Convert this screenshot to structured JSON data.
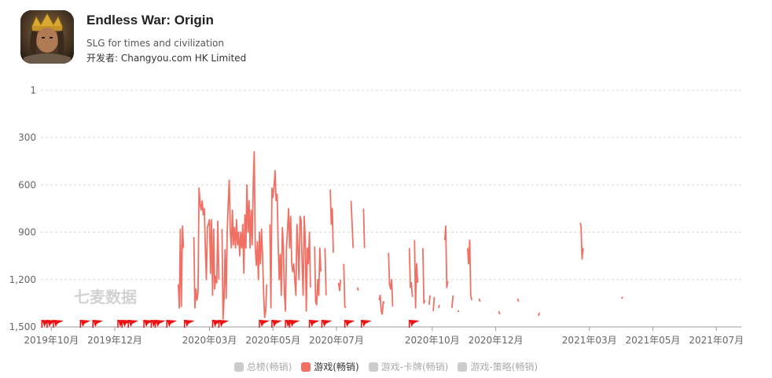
{
  "app": {
    "title": "Endless War: Origin",
    "subtitle": "SLG for times and civilization",
    "developer_label": "开发者: Changyou.com HK Limited",
    "icon": "app-icon-king-portrait"
  },
  "watermark": "七麦数据",
  "colors": {
    "series_active": "#f07064",
    "series_inactive": "#cccccc",
    "grid": "#d9d9d9",
    "axis": "#999999",
    "flag": "#ee1111"
  },
  "chart_data": {
    "type": "line",
    "title": "",
    "xlabel": "",
    "ylabel": "",
    "y_reversed": true,
    "ylim": [
      1,
      1500
    ],
    "y_ticks": [
      "1",
      "300",
      "600",
      "900",
      "1,200",
      "1,500"
    ],
    "y_tick_values": [
      1,
      300,
      600,
      900,
      1200,
      1500
    ],
    "xlim": [
      "2019-09-21",
      "2021-07-25"
    ],
    "x_ticks": [
      "2019年10月",
      "2019年12月",
      "2020年03月",
      "2020年05月",
      "2020年07月",
      "2020年10月",
      "2020年12月",
      "2021年03月",
      "2021年05月",
      "2021年07月"
    ],
    "x_tick_values": [
      "2019-10-01",
      "2019-12-01",
      "2020-03-01",
      "2020-05-01",
      "2020-07-01",
      "2020-10-01",
      "2020-12-01",
      "2021-03-01",
      "2021-05-01",
      "2021-07-01"
    ],
    "legend_position": "bottom",
    "legend": [
      {
        "name": "总榜(畅销)",
        "active": false
      },
      {
        "name": "游戏(畅销)",
        "active": true
      },
      {
        "name": "游戏-卡牌(畅销)",
        "active": false
      },
      {
        "name": "游戏-策略(畅销)",
        "active": false
      }
    ],
    "series": [
      {
        "name": "游戏(畅销)",
        "segments": [
          [
            [
              "2020-01-31",
              1230
            ],
            [
              "2020-02-01",
              1380
            ],
            [
              "2020-02-02",
              880
            ],
            [
              "2020-02-03",
              1370
            ],
            [
              "2020-02-04",
              860
            ],
            [
              "2020-02-05",
              1000
            ]
          ],
          [
            [
              "2020-02-15",
              930
            ],
            [
              "2020-02-16",
              1380
            ],
            [
              "2020-02-17",
              1260
            ],
            [
              "2020-02-18",
              1330
            ],
            [
              "2020-02-19",
              1280
            ],
            [
              "2020-02-20",
              620
            ],
            [
              "2020-02-21",
              720
            ],
            [
              "2020-02-22",
              760
            ],
            [
              "2020-02-23",
              700
            ],
            [
              "2020-02-24",
              790
            ],
            [
              "2020-02-25",
              750
            ],
            [
              "2020-02-26",
              1000
            ],
            [
              "2020-02-27",
              1200
            ],
            [
              "2020-02-28",
              870
            ],
            [
              "2020-03-01",
              820
            ],
            [
              "2020-03-02",
              1160
            ],
            [
              "2020-03-03",
              820
            ],
            [
              "2020-03-04",
              1300
            ],
            [
              "2020-03-05",
              880
            ],
            [
              "2020-03-06",
              1260
            ],
            [
              "2020-03-07",
              1180
            ],
            [
              "2020-03-08",
              1220
            ],
            [
              "2020-03-09",
              830
            ],
            [
              "2020-03-10",
              1200
            ]
          ],
          [
            [
              "2020-03-13",
              880
            ],
            [
              "2020-03-14",
              1450
            ],
            [
              "2020-03-15",
              1320
            ],
            [
              "2020-03-16",
              1010
            ],
            [
              "2020-03-17",
              1320
            ],
            [
              "2020-03-18",
              900
            ],
            [
              "2020-03-19",
              720
            ],
            [
              "2020-03-20",
              570
            ],
            [
              "2020-03-21",
              900
            ],
            [
              "2020-03-22",
              1000
            ],
            [
              "2020-03-23",
              760
            ],
            [
              "2020-03-24",
              980
            ],
            [
              "2020-03-25",
              870
            ],
            [
              "2020-03-26",
              1000
            ],
            [
              "2020-03-27",
              820
            ],
            [
              "2020-03-28",
              980
            ],
            [
              "2020-03-29",
              900
            ],
            [
              "2020-03-30",
              1050
            ],
            [
              "2020-03-31",
              900
            ],
            [
              "2020-04-01",
              1000
            ],
            [
              "2020-04-02",
              850
            ],
            [
              "2020-04-03",
              1160
            ],
            [
              "2020-04-04",
              790
            ],
            [
              "2020-04-05",
              1000
            ],
            [
              "2020-04-06",
              600
            ],
            [
              "2020-04-07",
              900
            ],
            [
              "2020-04-08",
              700
            ],
            [
              "2020-04-09",
              1000
            ],
            [
              "2020-04-10",
              760
            ],
            [
              "2020-04-11",
              980
            ],
            [
              "2020-04-12",
              600
            ],
            [
              "2020-04-13",
              390
            ],
            [
              "2020-04-14",
              1000
            ],
            [
              "2020-04-15",
              1110
            ],
            [
              "2020-04-16",
              960
            ],
            [
              "2020-04-17",
              1200
            ],
            [
              "2020-04-18",
              900
            ],
            [
              "2020-04-19",
              1100
            ],
            [
              "2020-04-20",
              880
            ],
            [
              "2020-04-21",
              1050
            ],
            [
              "2020-04-22",
              1280
            ],
            [
              "2020-04-23",
              1440
            ],
            [
              "2020-04-24",
              1400
            ],
            [
              "2020-04-25",
              1230
            ]
          ],
          [
            [
              "2020-04-28",
              850
            ],
            [
              "2020-04-29",
              1380
            ],
            [
              "2020-04-30",
              620
            ],
            [
              "2020-05-01",
              680
            ],
            [
              "2020-05-02",
              610
            ],
            [
              "2020-05-03",
              510
            ],
            [
              "2020-05-04",
              700
            ],
            [
              "2020-05-05",
              660
            ],
            [
              "2020-05-06",
              990
            ],
            [
              "2020-05-07",
              1200
            ],
            [
              "2020-05-08",
              1040
            ],
            [
              "2020-05-09",
              1300
            ],
            [
              "2020-05-10",
              870
            ],
            [
              "2020-05-11",
              1000
            ],
            [
              "2020-05-12",
              1290
            ],
            [
              "2020-05-13",
              1400
            ],
            [
              "2020-05-14",
              1000
            ],
            [
              "2020-05-15",
              880
            ],
            [
              "2020-05-16",
              750
            ],
            [
              "2020-05-17",
              1000
            ],
            [
              "2020-05-18",
              800
            ],
            [
              "2020-05-19",
              1100
            ],
            [
              "2020-05-20",
              1150
            ],
            [
              "2020-05-21",
              1100
            ],
            [
              "2020-05-22",
              1200
            ],
            [
              "2020-05-23",
              1300
            ],
            [
              "2020-05-24",
              850
            ],
            [
              "2020-05-25",
              1000
            ],
            [
              "2020-05-26",
              1200
            ],
            [
              "2020-05-27",
              800
            ],
            [
              "2020-05-28",
              820
            ],
            [
              "2020-05-29",
              1100
            ],
            [
              "2020-05-30",
              1300
            ],
            [
              "2020-05-31",
              800
            ],
            [
              "2020-06-01",
              950
            ],
            [
              "2020-06-02",
              1400
            ],
            [
              "2020-06-03",
              1000
            ],
            [
              "2020-06-04",
              1100
            ],
            [
              "2020-06-05",
              900
            ],
            [
              "2020-06-06",
              1250
            ]
          ],
          [
            [
              "2020-06-10",
              990
            ],
            [
              "2020-06-11",
              1340
            ],
            [
              "2020-06-12",
              1360
            ],
            [
              "2020-06-13",
              1200
            ],
            [
              "2020-06-14",
              1300
            ],
            [
              "2020-06-15",
              1000
            ],
            [
              "2020-06-16",
              1150
            ]
          ],
          [
            [
              "2020-06-20",
              1000
            ],
            [
              "2020-06-21",
              1300
            ]
          ],
          [
            [
              "2020-06-25",
              630
            ],
            [
              "2020-06-26",
              850
            ],
            [
              "2020-06-27",
              750
            ],
            [
              "2020-06-28",
              1030
            ]
          ],
          [
            [
              "2020-07-03",
              1220
            ],
            [
              "2020-07-04",
              1270
            ],
            [
              "2020-07-05",
              1200
            ]
          ],
          [
            [
              "2020-07-08",
              1100
            ],
            [
              "2020-07-09",
              1370
            ],
            [
              "2020-07-10",
              1380
            ]
          ],
          [
            [
              "2020-07-15",
              700
            ],
            [
              "2020-07-16",
              850
            ],
            [
              "2020-07-17",
              1000
            ]
          ],
          [
            [
              "2020-07-21",
              1250
            ],
            [
              "2020-07-22",
              1270
            ]
          ],
          [
            [
              "2020-07-27",
              750
            ],
            [
              "2020-07-28",
              1000
            ]
          ],
          [
            [
              "2020-08-11",
              1330
            ],
            [
              "2020-08-12",
              1300
            ],
            [
              "2020-08-13",
              1400
            ],
            [
              "2020-08-14",
              1420
            ],
            [
              "2020-08-15",
              1340
            ],
            [
              "2020-08-16",
              1350
            ]
          ],
          [
            [
              "2020-08-20",
              1030
            ],
            [
              "2020-08-21",
              1230
            ],
            [
              "2020-08-22",
              1260
            ],
            [
              "2020-08-23",
              1200
            ],
            [
              "2020-08-24",
              1370
            ]
          ],
          [
            [
              "2020-09-09",
              1000
            ],
            [
              "2020-09-10",
              1250
            ],
            [
              "2020-09-11",
              1220
            ],
            [
              "2020-09-12",
              1310
            ]
          ],
          [
            [
              "2020-09-14",
              950
            ],
            [
              "2020-09-15",
              1380
            ],
            [
              "2020-09-16",
              1100
            ],
            [
              "2020-09-17",
              1220
            ]
          ],
          [
            [
              "2020-09-22",
              1000
            ],
            [
              "2020-09-23",
              1350
            ],
            [
              "2020-09-24",
              1330
            ]
          ],
          [
            [
              "2020-09-28",
              1360
            ],
            [
              "2020-09-29",
              1300
            ]
          ],
          [
            [
              "2020-10-02",
              1400
            ],
            [
              "2020-10-03",
              1310
            ]
          ],
          [
            [
              "2020-10-07",
              1380
            ],
            [
              "2020-10-08",
              1360
            ]
          ],
          [
            [
              "2020-10-13",
              950
            ],
            [
              "2020-10-14",
              860
            ],
            [
              "2020-10-15",
              1250
            ],
            [
              "2020-10-16",
              1210
            ]
          ],
          [
            [
              "2020-10-20",
              1380
            ],
            [
              "2020-10-21",
              1300
            ]
          ],
          [
            [
              "2020-10-26",
              1400
            ]
          ],
          [
            [
              "2020-11-04",
              1000
            ],
            [
              "2020-11-05",
              1100
            ],
            [
              "2020-11-06",
              950
            ],
            [
              "2020-11-07",
              1300
            ],
            [
              "2020-11-08",
              1330
            ]
          ],
          [
            [
              "2020-11-15",
              1320
            ],
            [
              "2020-11-16",
              1340
            ]
          ],
          [
            [
              "2020-12-04",
              1400
            ],
            [
              "2020-12-05",
              1420
            ]
          ],
          [
            [
              "2020-12-22",
              1320
            ],
            [
              "2020-12-23",
              1340
            ]
          ]
        ],
        "segments_2021": [
          [
            [
              "2021-01-11",
              1430
            ],
            [
              "2021-01-12",
              1410
            ]
          ],
          [
            [
              "2021-02-20",
              840
            ],
            [
              "2021-02-21",
              860
            ],
            [
              "2021-02-22",
              1070
            ],
            [
              "2021-02-23",
              1000
            ]
          ],
          [
            [
              "2021-04-01",
              1320
            ],
            [
              "2021-04-02",
              1310
            ]
          ]
        ]
      }
    ],
    "event_flags": [
      "2019-09-22",
      "2019-09-27",
      "2019-10-03",
      "2019-10-29",
      "2019-11-10",
      "2019-12-04",
      "2019-12-08",
      "2019-12-14",
      "2019-12-29",
      "2020-01-05",
      "2020-01-09",
      "2020-01-20",
      "2020-02-06",
      "2020-03-04",
      "2020-03-10",
      "2020-04-18",
      "2020-04-30",
      "2020-05-13",
      "2020-05-17",
      "2020-06-05",
      "2020-06-17",
      "2020-07-09",
      "2020-07-25",
      "2020-09-09"
    ]
  }
}
